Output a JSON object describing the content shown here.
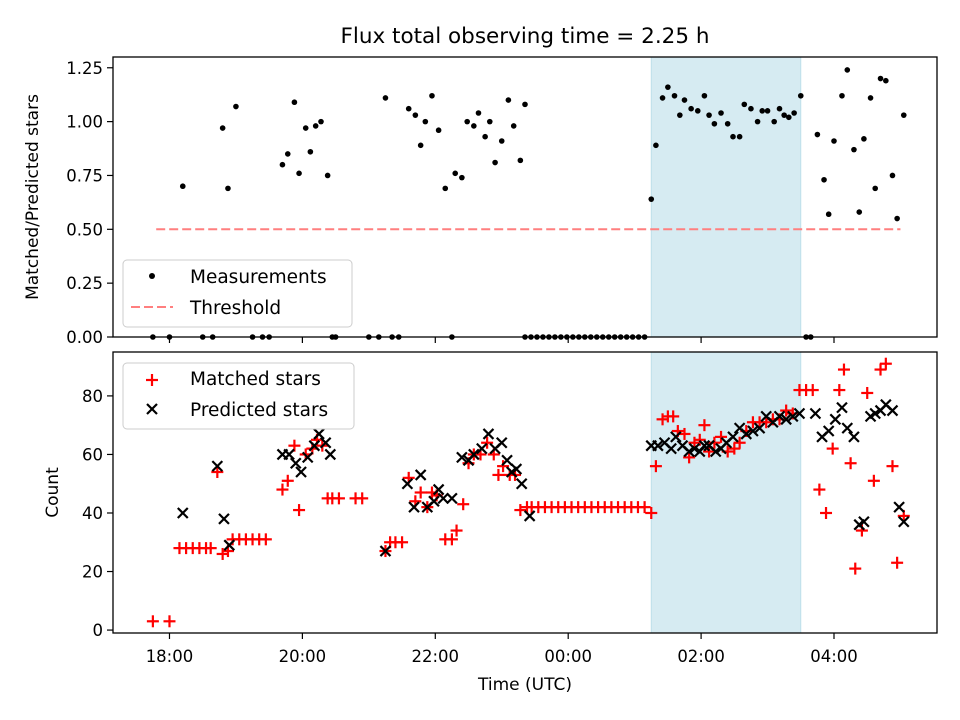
{
  "chart_data": {
    "title": "Flux total observing time = 2.25 h",
    "x_unit": "hours since 00:00 UTC (negative = previous evening)",
    "xlabel": "Time (UTC)",
    "xlim": [
      -6.85,
      5.55
    ],
    "xticks": [
      {
        "x": -6,
        "label": "18:00"
      },
      {
        "x": -4,
        "label": "20:00"
      },
      {
        "x": -2,
        "label": "22:00"
      },
      {
        "x": 0,
        "label": "00:00"
      },
      {
        "x": 2,
        "label": "02:00"
      },
      {
        "x": 4,
        "label": "04:00"
      }
    ],
    "highlight_span": [
      1.25,
      3.5
    ],
    "highlight_color": "#add8e6",
    "top": {
      "type": "scatter",
      "ylabel": "Matched/Predicted stars",
      "ylim": [
        0,
        1.3
      ],
      "yticks": [
        "0.00",
        "0.25",
        "0.50",
        "0.75",
        "1.00",
        "1.25"
      ],
      "legend": [
        "Measurements",
        "Threshold"
      ],
      "legend_position": "bottom-left",
      "threshold": {
        "y": 0.5,
        "x_start": -6.2,
        "x_end": 5.0,
        "color": "#ff7f7f"
      },
      "measurements": [
        [
          -6.25,
          0
        ],
        [
          -6.0,
          0
        ],
        [
          -5.8,
          0.7
        ],
        [
          -5.5,
          0
        ],
        [
          -5.35,
          0
        ],
        [
          -5.2,
          0.97
        ],
        [
          -5.12,
          0.69
        ],
        [
          -5.0,
          1.07
        ],
        [
          -4.75,
          0
        ],
        [
          -4.6,
          0
        ],
        [
          -4.5,
          0
        ],
        [
          -4.3,
          0.8
        ],
        [
          -4.22,
          0.85
        ],
        [
          -4.12,
          1.09
        ],
        [
          -4.05,
          0.76
        ],
        [
          -3.95,
          0.97
        ],
        [
          -3.88,
          0.86
        ],
        [
          -3.8,
          0.98
        ],
        [
          -3.72,
          1.0
        ],
        [
          -3.62,
          0.75
        ],
        [
          -3.55,
          0
        ],
        [
          -3.5,
          0
        ],
        [
          -3.0,
          0
        ],
        [
          -2.85,
          0
        ],
        [
          -2.75,
          1.11
        ],
        [
          -2.65,
          0
        ],
        [
          -2.55,
          0
        ],
        [
          -2.4,
          1.06
        ],
        [
          -2.3,
          1.03
        ],
        [
          -2.22,
          0.89
        ],
        [
          -2.15,
          1.0
        ],
        [
          -2.05,
          1.12
        ],
        [
          -1.95,
          0.96
        ],
        [
          -1.85,
          0.69
        ],
        [
          -1.75,
          0
        ],
        [
          -1.7,
          0.76
        ],
        [
          -1.6,
          0.74
        ],
        [
          -1.52,
          1.0
        ],
        [
          -1.42,
          0.98
        ],
        [
          -1.35,
          1.04
        ],
        [
          -1.25,
          0.93
        ],
        [
          -1.18,
          1.0
        ],
        [
          -1.1,
          0.81
        ],
        [
          -1.0,
          0.91
        ],
        [
          -0.9,
          1.1
        ],
        [
          -0.82,
          0.98
        ],
        [
          -0.72,
          0.82
        ],
        [
          -0.65,
          1.08
        ],
        [
          1.25,
          0.64
        ],
        [
          1.32,
          0.89
        ],
        [
          1.42,
          1.11
        ],
        [
          1.5,
          1.16
        ],
        [
          1.6,
          1.12
        ],
        [
          1.68,
          1.03
        ],
        [
          1.75,
          1.1
        ],
        [
          1.85,
          1.06
        ],
        [
          1.95,
          1.05
        ],
        [
          2.05,
          1.12
        ],
        [
          2.12,
          1.03
        ],
        [
          2.2,
          0.99
        ],
        [
          2.3,
          1.04
        ],
        [
          2.4,
          0.99
        ],
        [
          2.48,
          0.93
        ],
        [
          2.58,
          0.93
        ],
        [
          2.65,
          1.08
        ],
        [
          2.75,
          1.06
        ],
        [
          2.85,
          1.0
        ],
        [
          2.92,
          1.05
        ],
        [
          3.0,
          1.05
        ],
        [
          3.1,
          1.0
        ],
        [
          3.18,
          1.06
        ],
        [
          3.25,
          1.03
        ],
        [
          3.32,
          1.02
        ],
        [
          3.4,
          1.04
        ],
        [
          3.5,
          1.12
        ],
        [
          3.58,
          0
        ],
        [
          3.65,
          0
        ],
        [
          3.75,
          0.94
        ],
        [
          3.85,
          0.73
        ],
        [
          3.92,
          0.57
        ],
        [
          4.0,
          0.91
        ],
        [
          4.12,
          1.12
        ],
        [
          4.2,
          1.24
        ],
        [
          4.3,
          0.87
        ],
        [
          4.38,
          0.58
        ],
        [
          4.45,
          0.92
        ],
        [
          4.55,
          1.11
        ],
        [
          4.62,
          0.69
        ],
        [
          4.7,
          1.2
        ],
        [
          4.78,
          1.19
        ],
        [
          4.88,
          0.75
        ],
        [
          4.95,
          0.55
        ],
        [
          5.05,
          1.03
        ]
      ],
      "zeros_range": [
        -0.65,
        1.22
      ]
    },
    "bottom": {
      "type": "scatter",
      "ylabel": "Count",
      "ylim": [
        -1,
        95
      ],
      "yticks": [
        "0",
        "20",
        "40",
        "60",
        "80"
      ],
      "legend": [
        "Matched stars",
        "Predicted stars"
      ],
      "legend_position": "top-left",
      "matched_color": "#ff0000",
      "predicted_color": "#000000",
      "matched_stars": [
        [
          -6.25,
          3
        ],
        [
          -6.0,
          3
        ],
        [
          -5.85,
          28
        ],
        [
          -5.75,
          28
        ],
        [
          -5.65,
          28
        ],
        [
          -5.55,
          28
        ],
        [
          -5.45,
          28
        ],
        [
          -5.38,
          28
        ],
        [
          -5.28,
          54
        ],
        [
          -5.2,
          26
        ],
        [
          -5.12,
          27
        ],
        [
          -5.05,
          31
        ],
        [
          -4.95,
          31
        ],
        [
          -4.85,
          31
        ],
        [
          -4.75,
          31
        ],
        [
          -4.65,
          31
        ],
        [
          -4.55,
          31
        ],
        [
          -4.3,
          48
        ],
        [
          -4.22,
          51
        ],
        [
          -4.12,
          63
        ],
        [
          -4.05,
          41
        ],
        [
          -3.95,
          60
        ],
        [
          -3.85,
          62
        ],
        [
          -3.78,
          65
        ],
        [
          -3.7,
          63
        ],
        [
          -3.62,
          45
        ],
        [
          -3.55,
          45
        ],
        [
          -3.45,
          45
        ],
        [
          -3.2,
          45
        ],
        [
          -3.1,
          45
        ],
        [
          -2.75,
          27
        ],
        [
          -2.68,
          30
        ],
        [
          -2.6,
          30
        ],
        [
          -2.5,
          30
        ],
        [
          -2.4,
          52
        ],
        [
          -2.3,
          44
        ],
        [
          -2.22,
          47
        ],
        [
          -2.12,
          42
        ],
        [
          -2.05,
          47
        ],
        [
          -1.98,
          46
        ],
        [
          -1.85,
          31
        ],
        [
          -1.75,
          31
        ],
        [
          -1.68,
          34
        ],
        [
          -1.58,
          43
        ],
        [
          -1.5,
          57
        ],
        [
          -1.42,
          60
        ],
        [
          -1.32,
          60
        ],
        [
          -1.22,
          64
        ],
        [
          -1.12,
          60
        ],
        [
          -1.05,
          53
        ],
        [
          -0.98,
          56
        ],
        [
          -0.88,
          53
        ],
        [
          -0.8,
          53
        ],
        [
          -0.72,
          41
        ],
        [
          -0.62,
          42
        ],
        [
          -0.55,
          42
        ],
        [
          -0.45,
          42
        ],
        [
          -0.35,
          42
        ],
        [
          -0.25,
          42
        ],
        [
          -0.15,
          42
        ],
        [
          -0.05,
          42
        ],
        [
          0.05,
          42
        ],
        [
          0.15,
          42
        ],
        [
          0.25,
          42
        ],
        [
          0.35,
          42
        ],
        [
          0.45,
          42
        ],
        [
          0.55,
          42
        ],
        [
          0.65,
          42
        ],
        [
          0.75,
          42
        ],
        [
          0.85,
          42
        ],
        [
          0.95,
          42
        ],
        [
          1.05,
          42
        ],
        [
          1.15,
          42
        ],
        [
          1.25,
          40
        ],
        [
          1.32,
          56
        ],
        [
          1.42,
          72
        ],
        [
          1.5,
          73
        ],
        [
          1.58,
          73
        ],
        [
          1.65,
          68
        ],
        [
          1.75,
          67
        ],
        [
          1.82,
          59
        ],
        [
          1.9,
          64
        ],
        [
          1.98,
          65
        ],
        [
          2.05,
          70
        ],
        [
          2.12,
          61
        ],
        [
          2.2,
          64
        ],
        [
          2.3,
          66
        ],
        [
          2.4,
          61
        ],
        [
          2.5,
          62
        ],
        [
          2.58,
          64
        ],
        [
          2.68,
          68
        ],
        [
          2.78,
          71
        ],
        [
          2.88,
          71
        ],
        [
          2.98,
          71
        ],
        [
          3.08,
          72
        ],
        [
          3.18,
          72
        ],
        [
          3.28,
          75
        ],
        [
          3.38,
          74
        ],
        [
          3.48,
          82
        ],
        [
          3.58,
          82
        ],
        [
          3.68,
          82
        ],
        [
          3.78,
          48
        ],
        [
          3.88,
          40
        ],
        [
          3.98,
          62
        ],
        [
          4.08,
          82
        ],
        [
          4.15,
          89
        ],
        [
          4.25,
          57
        ],
        [
          4.32,
          21
        ],
        [
          4.42,
          34
        ],
        [
          4.5,
          81
        ],
        [
          4.6,
          51
        ],
        [
          4.7,
          89
        ],
        [
          4.78,
          91
        ],
        [
          4.88,
          56
        ],
        [
          4.95,
          23
        ],
        [
          5.05,
          39
        ]
      ],
      "predicted_stars": [
        [
          -5.8,
          40
        ],
        [
          -5.28,
          56
        ],
        [
          -5.18,
          38
        ],
        [
          -5.1,
          29
        ],
        [
          -4.3,
          60
        ],
        [
          -4.2,
          60
        ],
        [
          -4.1,
          57
        ],
        [
          -4.02,
          54
        ],
        [
          -3.92,
          59
        ],
        [
          -3.82,
          63
        ],
        [
          -3.75,
          67
        ],
        [
          -3.65,
          64
        ],
        [
          -3.58,
          60
        ],
        [
          -2.75,
          27
        ],
        [
          -2.42,
          50
        ],
        [
          -2.32,
          42
        ],
        [
          -2.22,
          53
        ],
        [
          -2.12,
          42
        ],
        [
          -2.02,
          44
        ],
        [
          -1.95,
          48
        ],
        [
          -1.88,
          45
        ],
        [
          -1.75,
          45
        ],
        [
          -1.6,
          59
        ],
        [
          -1.5,
          58
        ],
        [
          -1.42,
          60
        ],
        [
          -1.3,
          62
        ],
        [
          -1.2,
          67
        ],
        [
          -1.1,
          62
        ],
        [
          -1.0,
          64
        ],
        [
          -0.92,
          58
        ],
        [
          -0.85,
          54
        ],
        [
          -0.78,
          55
        ],
        [
          -0.7,
          50
        ],
        [
          -0.58,
          39
        ],
        [
          1.25,
          63
        ],
        [
          1.35,
          63
        ],
        [
          1.45,
          64
        ],
        [
          1.55,
          62
        ],
        [
          1.62,
          66
        ],
        [
          1.72,
          63
        ],
        [
          1.82,
          61
        ],
        [
          1.9,
          62
        ],
        [
          1.98,
          61
        ],
        [
          2.05,
          63
        ],
        [
          2.12,
          63
        ],
        [
          2.22,
          61
        ],
        [
          2.3,
          62
        ],
        [
          2.38,
          64
        ],
        [
          2.48,
          66
        ],
        [
          2.58,
          69
        ],
        [
          2.68,
          67
        ],
        [
          2.78,
          68
        ],
        [
          2.88,
          69
        ],
        [
          2.98,
          73
        ],
        [
          3.08,
          71
        ],
        [
          3.18,
          73
        ],
        [
          3.28,
          72
        ],
        [
          3.38,
          73
        ],
        [
          3.48,
          74
        ],
        [
          3.72,
          74
        ],
        [
          3.82,
          66
        ],
        [
          3.92,
          68
        ],
        [
          4.02,
          72
        ],
        [
          4.12,
          76
        ],
        [
          4.2,
          69
        ],
        [
          4.3,
          66
        ],
        [
          4.38,
          36
        ],
        [
          4.45,
          37
        ],
        [
          4.55,
          73
        ],
        [
          4.62,
          74
        ],
        [
          4.7,
          75
        ],
        [
          4.78,
          77
        ],
        [
          4.88,
          75
        ],
        [
          4.98,
          42
        ],
        [
          5.05,
          37
        ]
      ]
    }
  }
}
